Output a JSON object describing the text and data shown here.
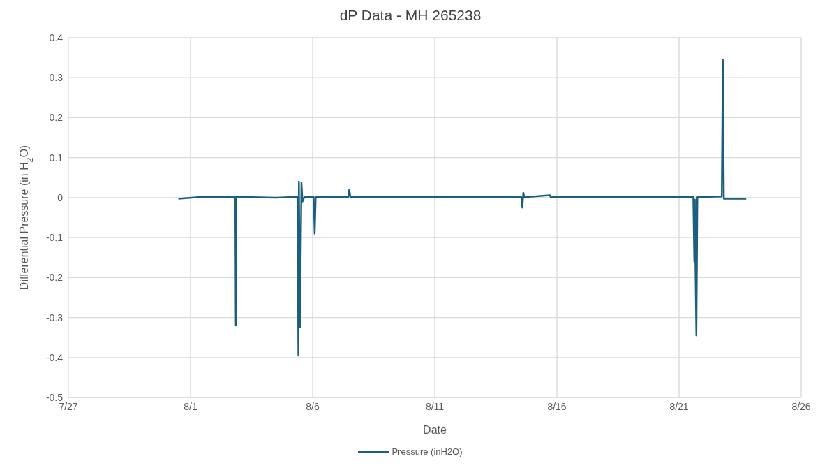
{
  "chart_data": {
    "type": "line",
    "title": "dP Data - MH 265238",
    "xlabel": "Date",
    "ylabel": "Differential Pressure (in H$_{2}$O)",
    "x": [
      "--07-31T12:00",
      "--08-01T12:00",
      "--08-02T12:00",
      "--08-02T20:00",
      "--08-02T20:30",
      "--08-02T21:00",
      "--08-03T12:00",
      "--08-04T12:00",
      "--08-05T09:00",
      "--08-05T10:00",
      "--08-05T10:30",
      "--08-05T11:30",
      "--08-05T13:00",
      "--08-05T14:00",
      "--08-05T16:00",
      "--08-06T01:00",
      "--08-06T02:00",
      "--08-06T03:00",
      "--08-07T11:00",
      "--08-07T12:00",
      "--08-07T13:00",
      "--08-09T12:00",
      "--08-11T12:00",
      "--08-13T12:00",
      "--08-14T13:00",
      "--08-14T14:00",
      "--08-14T15:00",
      "--08-14T16:00",
      "--08-15T17:00",
      "--08-15T18:00",
      "--08-18T12:00",
      "--08-20T12:00",
      "--08-21T14:00",
      "--08-21T15:00",
      "--08-21T15:30",
      "--08-21T16:00",
      "--08-21T17:00",
      "--08-21T18:00",
      "--08-22T18:00",
      "--08-22T19:00",
      "--08-22T20:00",
      "--08-23T18:00"
    ],
    "series": [
      {
        "name": "Pressure (inH2O)",
        "color": "#1b5e7e",
        "values": [
          -0.003,
          0.002,
          0.001,
          0.001,
          -0.32,
          0.001,
          0.001,
          0.0,
          0.002,
          -0.395,
          0.04,
          -0.325,
          0.037,
          -0.01,
          0.002,
          0.001,
          -0.09,
          0.001,
          0.002,
          0.02,
          0.002,
          0.001,
          0.001,
          0.002,
          0.001,
          -0.025,
          0.012,
          0.001,
          0.006,
          0.001,
          0.001,
          0.002,
          0.001,
          -0.16,
          -0.005,
          -0.15,
          -0.345,
          0.001,
          0.003,
          0.345,
          -0.003,
          -0.003
        ]
      }
    ],
    "xlim": [
      "--07-27",
      "--08-26"
    ],
    "xticks": [
      {
        "value": "--07-27",
        "label": "7/27"
      },
      {
        "value": "--08-01",
        "label": "8/1"
      },
      {
        "value": "--08-06",
        "label": "8/6"
      },
      {
        "value": "--08-11",
        "label": "8/11"
      },
      {
        "value": "--08-16",
        "label": "8/16"
      },
      {
        "value": "--08-21",
        "label": "8/21"
      },
      {
        "value": "--08-26",
        "label": "8/26"
      }
    ],
    "ylim": [
      -0.5,
      0.4
    ],
    "yticks": [
      -0.5,
      -0.4,
      -0.3,
      -0.2,
      -0.1,
      0,
      0.1,
      0.2,
      0.3,
      0.4
    ],
    "grid": true,
    "legend": "bottom",
    "marker": "none",
    "line_style": "solid"
  }
}
